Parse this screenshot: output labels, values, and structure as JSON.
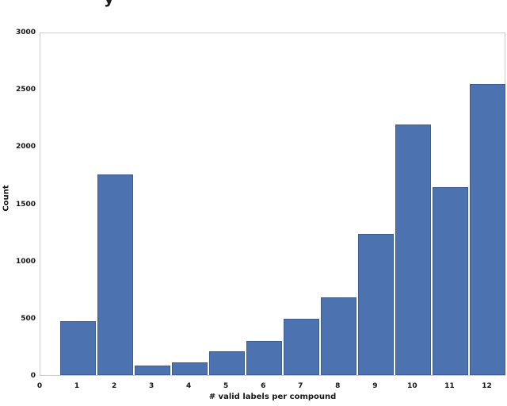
{
  "figure": {
    "title_fragment": "y",
    "background_color": "#ffffff"
  },
  "chart_data": {
    "type": "bar",
    "title": "",
    "xlabel": "# valid labels per compound",
    "ylabel": "Count",
    "categories": [
      1,
      2,
      3,
      4,
      5,
      6,
      7,
      8,
      9,
      10,
      11,
      12
    ],
    "values": [
      470,
      1750,
      80,
      110,
      210,
      300,
      490,
      680,
      1230,
      2190,
      1640,
      2540
    ],
    "bar_width": 1.0,
    "xlim": [
      0,
      12.5
    ],
    "ylim": [
      0,
      3000
    ],
    "xticks": [
      0,
      1,
      2,
      3,
      4,
      5,
      6,
      7,
      8,
      9,
      10,
      11,
      12
    ],
    "yticks": [
      0,
      500,
      1000,
      1500,
      2000,
      2500,
      3000
    ],
    "grid": false,
    "legend": null,
    "bar_color": "#4c72b0",
    "bar_edge_color": "#3d5c91",
    "frame_color": "#cbcbcb",
    "text_color": "#141414"
  }
}
